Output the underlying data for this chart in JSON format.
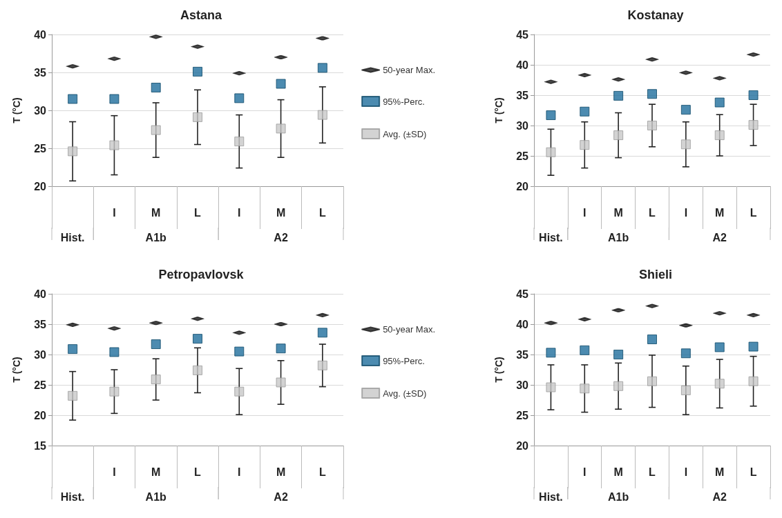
{
  "chart_data": [
    {
      "type": "scatter",
      "title": "Astana",
      "ylabel": "T (°C)",
      "categories": [
        null,
        "I",
        "M",
        "L",
        "I",
        "M",
        "L"
      ],
      "annotations": [
        "Hist.",
        "A1b",
        "A2"
      ],
      "ylim": [
        20,
        40
      ],
      "yticks": [
        20,
        25,
        30,
        35,
        40
      ],
      "grid": "y",
      "legend": "right",
      "series": [
        {
          "name": "50-year Max.",
          "color": "#1a1a1a",
          "values": [
            35.8,
            36.8,
            39.7,
            38.4,
            34.9,
            37.0,
            39.5
          ]
        },
        {
          "name": "95%-Perc.",
          "color": "#1f6e9c",
          "marker": "square",
          "values": [
            31.5,
            31.5,
            33.0,
            35.1,
            31.6,
            33.5,
            35.6
          ]
        },
        {
          "name": "Avg. (±SD)",
          "color": "#c8c8c8",
          "marker": "square",
          "values": [
            24.6,
            25.4,
            27.4,
            29.1,
            25.9,
            27.6,
            29.4
          ],
          "errors": [
            3.9,
            3.9,
            3.6,
            3.6,
            3.5,
            3.8,
            3.7
          ]
        }
      ]
    },
    {
      "type": "scatter",
      "title": "Kostanay",
      "ylabel": "T (°C)",
      "categories": [
        null,
        "I",
        "M",
        "L",
        "I",
        "M",
        "L"
      ],
      "annotations": [
        "Hist.",
        "A1b",
        "A2"
      ],
      "ylim": [
        20,
        45
      ],
      "yticks": [
        20,
        25,
        30,
        35,
        40,
        45
      ],
      "grid": "y",
      "series": [
        {
          "color": "#1a1a1a",
          "values": [
            37.2,
            38.3,
            37.6,
            40.9,
            38.7,
            37.8,
            41.7
          ]
        },
        {
          "color": "#1f6e9c",
          "marker": "square",
          "values": [
            31.7,
            32.3,
            34.9,
            35.2,
            32.6,
            33.8,
            35.0
          ]
        },
        {
          "color": "#c8c8c8",
          "marker": "square",
          "values": [
            25.6,
            26.8,
            28.4,
            30.0,
            26.9,
            28.4,
            30.1
          ],
          "errors": [
            3.8,
            3.8,
            3.7,
            3.5,
            3.7,
            3.4,
            3.4
          ]
        }
      ]
    },
    {
      "type": "scatter",
      "title": "Petropavlovsk",
      "ylabel": "T (°C)",
      "categories": [
        null,
        "I",
        "M",
        "L",
        "I",
        "M",
        "L"
      ],
      "annotations": [
        "Hist.",
        "A1b",
        "A2"
      ],
      "ylim": [
        15,
        40
      ],
      "yticks": [
        15,
        20,
        25,
        30,
        35,
        40
      ],
      "grid": "y",
      "legend": "right",
      "series": [
        {
          "name": "50-year Max.",
          "color": "#1a1a1a",
          "values": [
            34.9,
            34.3,
            35.2,
            35.9,
            33.6,
            35.0,
            36.5
          ]
        },
        {
          "name": "95%-Perc.",
          "color": "#1f6e9c",
          "marker": "square",
          "values": [
            30.9,
            30.4,
            31.7,
            32.6,
            30.5,
            31.0,
            33.6
          ]
        },
        {
          "name": "Avg. (±SD)",
          "color": "#c8c8c8",
          "marker": "square",
          "values": [
            23.2,
            23.9,
            25.9,
            27.4,
            23.9,
            25.4,
            28.2
          ],
          "errors": [
            4.0,
            3.6,
            3.4,
            3.7,
            3.8,
            3.6,
            3.5
          ]
        }
      ]
    },
    {
      "type": "scatter",
      "title": "Shieli",
      "ylabel": "T (°C)",
      "categories": [
        null,
        "I",
        "M",
        "L",
        "I",
        "M",
        "L"
      ],
      "annotations": [
        "Hist.",
        "A1b",
        "A2"
      ],
      "ylim": [
        20,
        45
      ],
      "yticks": [
        20,
        25,
        30,
        35,
        40,
        45
      ],
      "grid": "y",
      "series": [
        {
          "color": "#1a1a1a",
          "values": [
            40.2,
            40.8,
            42.3,
            43.0,
            39.8,
            41.8,
            41.5
          ]
        },
        {
          "color": "#1f6e9c",
          "marker": "square",
          "values": [
            35.3,
            35.7,
            35.0,
            37.5,
            35.2,
            36.2,
            36.3
          ]
        },
        {
          "color": "#c8c8c8",
          "marker": "square",
          "values": [
            29.6,
            29.4,
            29.8,
            30.6,
            29.1,
            30.2,
            30.6
          ],
          "errors": [
            3.7,
            3.9,
            3.8,
            4.3,
            4.0,
            4.0,
            4.1
          ]
        }
      ]
    }
  ]
}
